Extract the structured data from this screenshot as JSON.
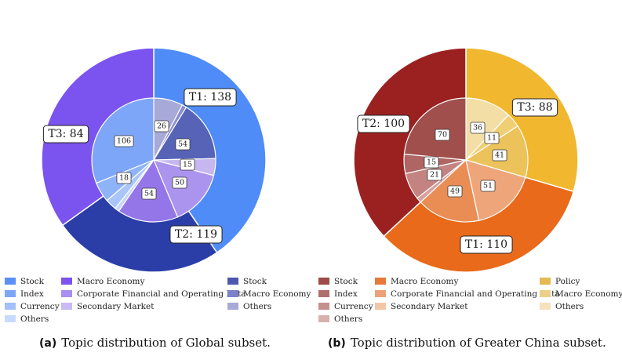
{
  "chart_data": [
    {
      "type": "pie",
      "caption_tag": "(a)",
      "caption_text": "Topic distribution of Global subset.",
      "outer": [
        {
          "label": "T1: 138",
          "value": 138,
          "color": "#4f8cf7"
        },
        {
          "label": "T3: 84",
          "value": 84,
          "color": "#2b3ea8"
        },
        {
          "label": "T2: 119",
          "value": 119,
          "color": "#7b53ef"
        }
      ],
      "inner": [
        {
          "group": "T3",
          "legend": "Stock",
          "value": 26,
          "label": "26",
          "color": "#a7a9d8"
        },
        {
          "group": "T3",
          "legend": "Macro Economy",
          "value": 4,
          "label": "",
          "color": "#8a8ed1"
        },
        {
          "group": "T3",
          "legend": "Others",
          "value": 54,
          "label": "54",
          "color": "#5663b7"
        },
        {
          "group": "T2",
          "legend": "Macro Economy",
          "value": 15,
          "label": "15",
          "color": "#c6b7f0"
        },
        {
          "group": "T2",
          "legend": "Corporate Financial and Operating Data",
          "value": 50,
          "label": "50",
          "color": "#ab94ed"
        },
        {
          "group": "T2",
          "legend": "Secondary Market",
          "value": 54,
          "label": "54",
          "color": "#9576e9"
        },
        {
          "group": "T1",
          "legend": "Others",
          "value": 4,
          "label": "",
          "color": "#c5d7fb"
        },
        {
          "group": "T1",
          "legend": "Currency",
          "value": 10,
          "label": "",
          "color": "#a9c5fa"
        },
        {
          "group": "T1",
          "legend": "Index",
          "value": 18,
          "label": "18",
          "color": "#8eb3f8"
        },
        {
          "group": "T1",
          "legend": "Stock",
          "value": 106,
          "label": "106",
          "color": "#7ea6f8"
        }
      ],
      "legend": [
        [
          {
            "label": "Stock",
            "color": "#5b8ff5"
          },
          {
            "label": "Index",
            "color": "#7ea6f8"
          },
          {
            "label": "Currency",
            "color": "#a3c0fa"
          },
          {
            "label": "Others",
            "color": "#c8daff"
          }
        ],
        [
          {
            "label": "Macro Economy",
            "color": "#7b53ef"
          },
          {
            "label": "Corporate Financial and Operating Data",
            "color": "#a88ff0"
          },
          {
            "label": "Secondary Market",
            "color": "#c9b9f4"
          }
        ],
        [
          {
            "label": "Stock",
            "color": "#4b57b0"
          },
          {
            "label": "Macro Economy",
            "color": "#7c82c8"
          },
          {
            "label": "Others",
            "color": "#a7a9d8"
          }
        ]
      ]
    },
    {
      "type": "pie",
      "caption_tag": "(b)",
      "caption_text": "Topic distribution of Greater China subset.",
      "outer": [
        {
          "label": "T3: 88",
          "value": 88,
          "color": "#f1b72f"
        },
        {
          "label": "T2: 100",
          "value": 100,
          "color": "#e86a1a"
        },
        {
          "label": "T1: 110",
          "value": 110,
          "color": "#9b2120"
        }
      ],
      "inner": [
        {
          "group": "T3",
          "legend": "Others",
          "value": 36,
          "label": "36",
          "color": "#f3dfa5"
        },
        {
          "group": "T3",
          "legend": "Macro Economy",
          "value": 11,
          "label": "11",
          "color": "#f0cf74"
        },
        {
          "group": "T3",
          "legend": "Policy",
          "value": 41,
          "label": "41",
          "color": "#ebc35a"
        },
        {
          "group": "T2",
          "legend": "Corporate Financial and Operating Data",
          "value": 51,
          "label": "51",
          "color": "#efa57a"
        },
        {
          "group": "T2",
          "legend": "Macro Economy",
          "value": 49,
          "label": "49",
          "color": "#e98d55"
        },
        {
          "group": "T1",
          "legend": "Others",
          "value": 4,
          "label": "",
          "color": "#d5a19e"
        },
        {
          "group": "T1",
          "legend": "Currency",
          "value": 21,
          "label": "21",
          "color": "#c38481"
        },
        {
          "group": "T1",
          "legend": "Index",
          "value": 15,
          "label": "15",
          "color": "#ae6563"
        },
        {
          "group": "T1",
          "legend": "Stock",
          "value": 70,
          "label": "70",
          "color": "#a04f4d"
        }
      ],
      "legend": [
        [
          {
            "label": "Stock",
            "color": "#9e4b48"
          },
          {
            "label": "Index",
            "color": "#b06f6c"
          },
          {
            "label": "Currency",
            "color": "#c48f8c"
          },
          {
            "label": "Others",
            "color": "#d8b0ad"
          }
        ],
        [
          {
            "label": "Macro Economy",
            "color": "#e57a3a"
          },
          {
            "label": "Corporate Financial and Operating Data",
            "color": "#eca178"
          },
          {
            "label": "Secondary Market",
            "color": "#f2c7a8"
          }
        ],
        [
          {
            "label": "Policy",
            "color": "#e5b951"
          },
          {
            "label": "Macro Economy",
            "color": "#ecd08a"
          },
          {
            "label": "Others",
            "color": "#f3e2bd"
          }
        ]
      ]
    }
  ]
}
